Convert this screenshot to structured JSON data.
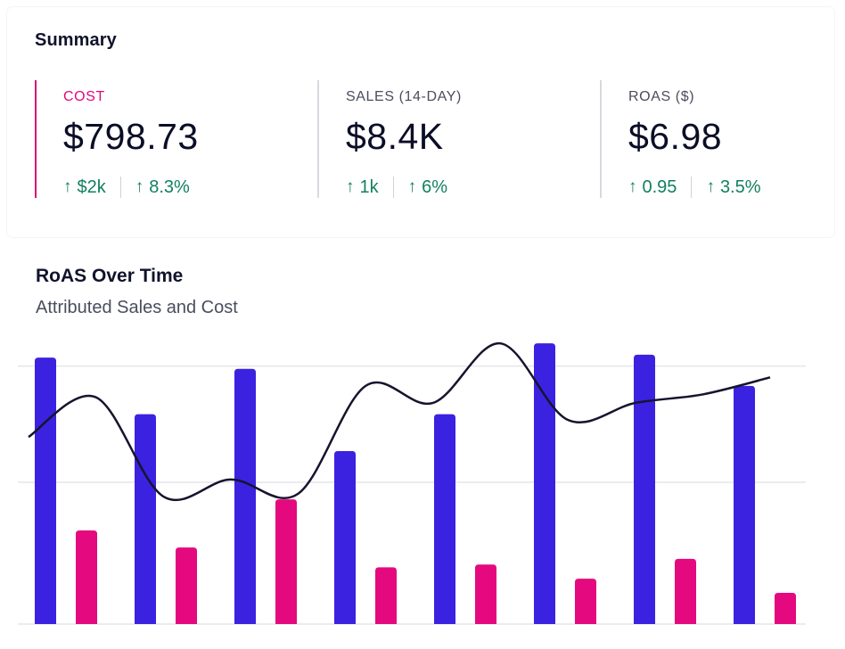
{
  "summary": {
    "title": "Summary",
    "metrics": [
      {
        "label": "COST",
        "value": "$798.73",
        "delta_abs": "$2k",
        "delta_pct": "8.3%",
        "active": true
      },
      {
        "label": "SALES (14-DAY)",
        "value": "$8.4K",
        "delta_abs": "1k",
        "delta_pct": "6%",
        "active": false
      },
      {
        "label": "ROAS ($)",
        "value": "$6.98",
        "delta_abs": "0.95",
        "delta_pct": "3.5%",
        "active": false
      }
    ],
    "arrow_glyph": "↑",
    "colors": {
      "accent": "#e0097d",
      "positive": "#12805f",
      "text": "#0b0e26"
    }
  },
  "chart": {
    "title": "RoAS Over Time",
    "subtitle": "Attributed Sales and Cost"
  },
  "chart_data": {
    "type": "bar",
    "grid": true,
    "legend": "none",
    "ylim": [
      0,
      100
    ],
    "series": [
      {
        "type": "bar",
        "color": "#3b22e0",
        "values": [
          94,
          74,
          90,
          61,
          74,
          99,
          95,
          84
        ]
      },
      {
        "type": "bar",
        "color": "#e5097f",
        "values": [
          33,
          27,
          44,
          20,
          21,
          16,
          23,
          11
        ]
      },
      {
        "type": "line",
        "color": "#16142e",
        "values": [
          66,
          80,
          45,
          51,
          46,
          84,
          78,
          99,
          72,
          78,
          81,
          87
        ]
      }
    ]
  }
}
